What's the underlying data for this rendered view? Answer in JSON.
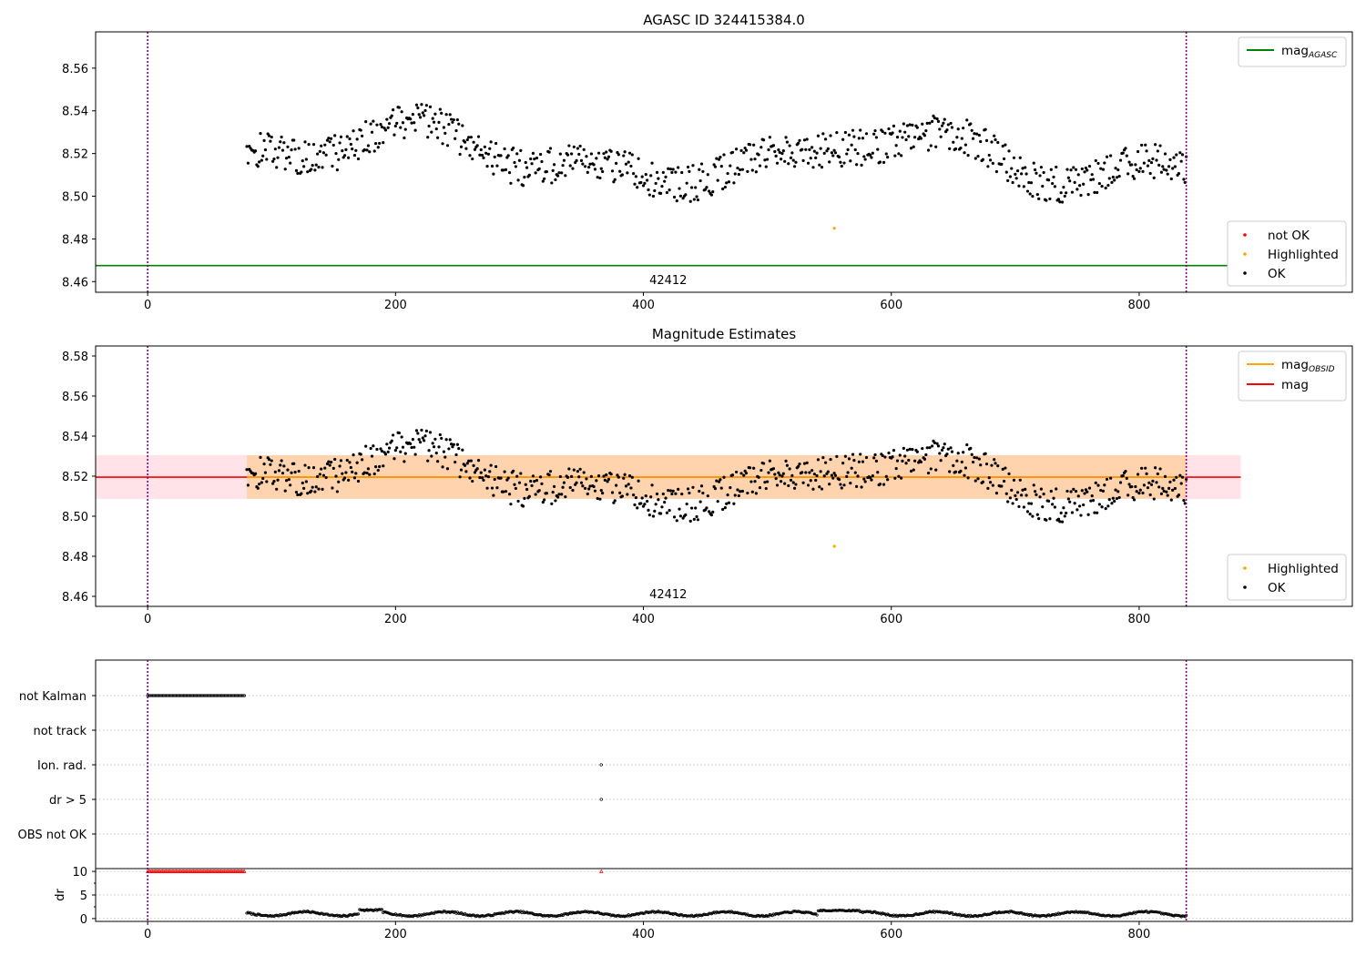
{
  "chart_data": [
    {
      "type": "scatter",
      "title": "AGASC ID 324415384.0",
      "annotation": "42412",
      "xlim": [
        -42,
        972
      ],
      "ylim": [
        8.455,
        8.577
      ],
      "xticks": [
        0,
        200,
        400,
        600,
        800
      ],
      "yticks": [
        8.46,
        8.48,
        8.5,
        8.52,
        8.54,
        8.56
      ],
      "ytick_labels": [
        "8.46",
        "8.48",
        "8.50",
        "8.52",
        "8.54",
        "8.56"
      ],
      "vlines": [
        0,
        838
      ],
      "hlines": [
        {
          "name": "mag_AGASC",
          "y": 8.4675,
          "x": [
            -42,
            882
          ],
          "color": "#008000"
        }
      ],
      "legend_lines": [
        {
          "base": "mag",
          "sub": "AGASC",
          "color": "#008000"
        }
      ],
      "legend_points": [
        {
          "label": "not OK",
          "color": "#ff0000"
        },
        {
          "label": "Highlighted",
          "color": "#ffa500"
        },
        {
          "label": "OK",
          "color": "#000000"
        }
      ],
      "series": [
        {
          "name": "OK",
          "color": "#000000",
          "model": "magnitude",
          "x": [
            80,
            838
          ],
          "y_mean": 8.519
        },
        {
          "name": "Highlighted",
          "color": "#ffa500",
          "points": [
            [
              554,
              8.485
            ]
          ]
        }
      ]
    },
    {
      "type": "scatter",
      "title": "Magnitude Estimates",
      "annotation": "42412",
      "xlim": [
        -42,
        972
      ],
      "ylim": [
        8.455,
        8.585
      ],
      "xticks": [
        0,
        200,
        400,
        600,
        800
      ],
      "yticks": [
        8.46,
        8.48,
        8.5,
        8.52,
        8.54,
        8.56,
        8.58
      ],
      "ytick_labels": [
        "8.46",
        "8.48",
        "8.50",
        "8.52",
        "8.54",
        "8.56",
        "8.58"
      ],
      "vlines": [
        0,
        838
      ],
      "bands": [
        {
          "x": [
            -42,
            882
          ],
          "y": [
            8.5087,
            8.5305
          ],
          "color": "#ffc0cb",
          "opacity": 0.45
        },
        {
          "x": [
            80,
            838
          ],
          "y": [
            8.5087,
            8.5305
          ],
          "color": "#ffa500",
          "opacity": 0.25
        }
      ],
      "hlines": [
        {
          "name": "mag",
          "y": 8.5195,
          "x": [
            -42,
            882
          ],
          "color": "#ff0000"
        },
        {
          "name": "mag_OBSID",
          "y": 8.5195,
          "x": [
            80,
            838
          ],
          "color": "#ffa500"
        }
      ],
      "legend_lines": [
        {
          "base": "mag",
          "sub": "OBSID",
          "color": "#ffa500"
        },
        {
          "base": "mag",
          "sub": "",
          "color": "#ff0000"
        }
      ],
      "legend_points": [
        {
          "label": "Highlighted",
          "color": "#ffa500"
        },
        {
          "label": "OK",
          "color": "#000000"
        }
      ],
      "series": [
        {
          "name": "OK",
          "color": "#000000",
          "model": "magnitude",
          "x": [
            80,
            838
          ],
          "y_mean": 8.519
        },
        {
          "name": "Highlighted",
          "color": "#ffa500",
          "points": [
            [
              554,
              8.485
            ]
          ]
        }
      ]
    },
    {
      "type": "scatter",
      "title": "",
      "xlim": [
        -42,
        972
      ],
      "xticks": [
        0,
        200,
        400,
        600,
        800
      ],
      "vlines": [
        0,
        838
      ],
      "flag_categories": [
        "not Kalman",
        "not track",
        "Ion. rad.",
        "dr > 5",
        "OBS not OK"
      ],
      "flags": [
        {
          "category": "not Kalman",
          "x_range": [
            0,
            78
          ],
          "step": 1
        },
        {
          "category": "Ion. rad.",
          "points": [
            366
          ]
        },
        {
          "category": "dr > 5",
          "points": [
            366
          ]
        }
      ],
      "dr": {
        "ylabel": "dr",
        "ylim": [
          -0.6,
          10.6
        ],
        "yticks": [
          0,
          5,
          10
        ],
        "ytick_labels": [
          "0",
          "5",
          "10"
        ],
        "clipped_marker": {
          "y": 10,
          "color": "#ff0000",
          "x_range": [
            0,
            78
          ],
          "points": [
            366
          ]
        },
        "series": {
          "name": "dr",
          "color": "#000000",
          "x": [
            80,
            838
          ],
          "y_typical": 1.0
        }
      }
    }
  ]
}
